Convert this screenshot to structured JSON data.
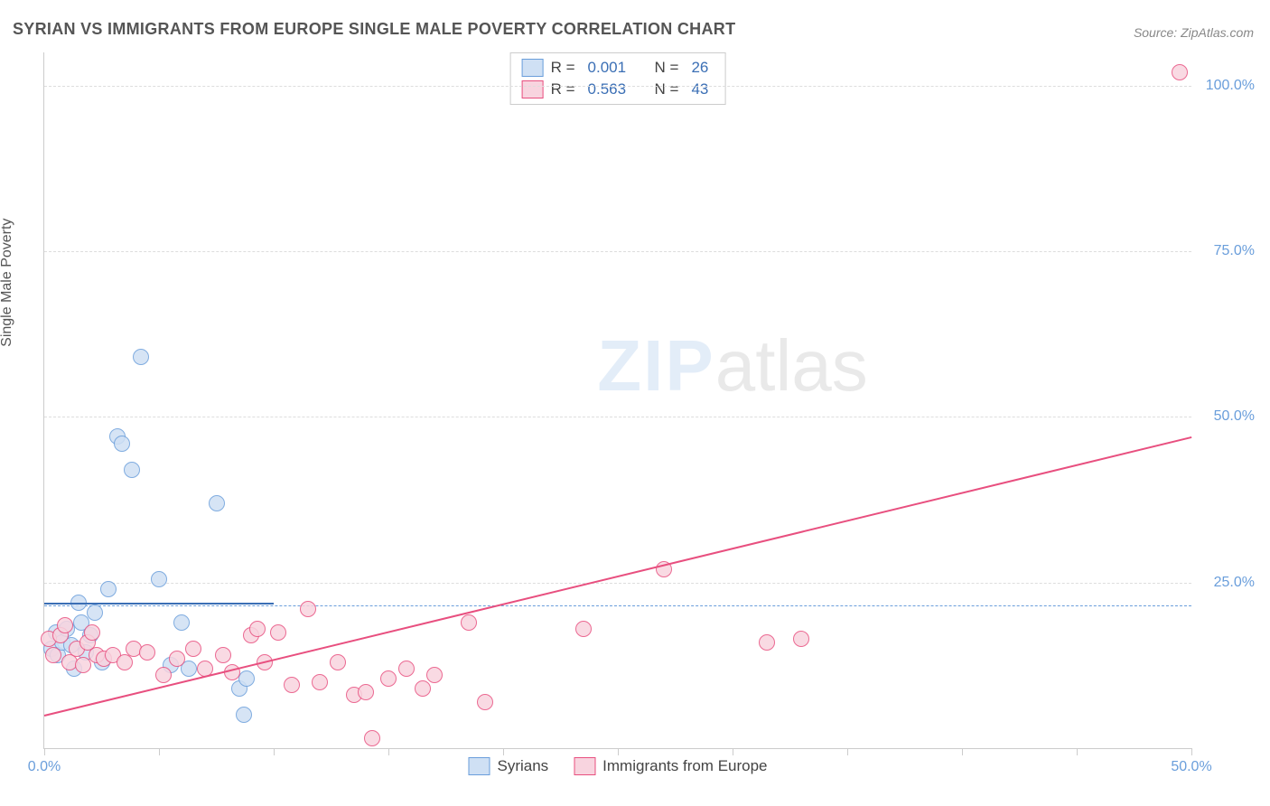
{
  "title": "SYRIAN VS IMMIGRANTS FROM EUROPE SINGLE MALE POVERTY CORRELATION CHART",
  "source_prefix": "Source: ",
  "source_name": "ZipAtlas.com",
  "ylabel": "Single Male Poverty",
  "watermark_a": "ZIP",
  "watermark_b": "atlas",
  "chart": {
    "type": "scatter",
    "xlim": [
      0,
      50
    ],
    "ylim": [
      0,
      105
    ],
    "background_color": "#ffffff",
    "grid_color": "#dddddd",
    "grid_dash": true,
    "xtick_positions": [
      0,
      5,
      10,
      15,
      20,
      25,
      30,
      35,
      40,
      45,
      50
    ],
    "xtick_labels": {
      "0": "0.0%",
      "50": "50.0%"
    },
    "ytick_positions": [
      25,
      50,
      75,
      100
    ],
    "ytick_labels": {
      "25": "25.0%",
      "50": "50.0%",
      "75": "75.0%",
      "100": "100.0%"
    },
    "refline_y": 21.5,
    "refline_color": "#6a9edb",
    "axis_color": "#cccccc",
    "marker_radius": 8,
    "marker_border_width": 1.2,
    "trend_width": 2,
    "ylabel_fontsize": 16,
    "title_fontsize": 18,
    "tick_label_color": "#6a9edb"
  },
  "series": [
    {
      "name": "Syrians",
      "fill": "#cfe0f4",
      "stroke": "#6a9edb",
      "R": "0.001",
      "N": "26",
      "trend": {
        "x1": 0,
        "y1": 22.0,
        "x2": 10,
        "y2": 22.0,
        "color": "#3b6fb5"
      },
      "points": [
        [
          0.3,
          15.0
        ],
        [
          0.5,
          17.5
        ],
        [
          0.6,
          14.0
        ],
        [
          0.8,
          16.0
        ],
        [
          1.0,
          18.0
        ],
        [
          1.2,
          15.5
        ],
        [
          1.3,
          12.0
        ],
        [
          1.5,
          22.0
        ],
        [
          1.6,
          19.0
        ],
        [
          1.8,
          14.5
        ],
        [
          2.0,
          17.0
        ],
        [
          2.2,
          20.5
        ],
        [
          2.5,
          13.0
        ],
        [
          2.8,
          24.0
        ],
        [
          3.2,
          47.0
        ],
        [
          3.4,
          46.0
        ],
        [
          3.8,
          42.0
        ],
        [
          4.2,
          59.0
        ],
        [
          5.0,
          25.5
        ],
        [
          5.5,
          12.5
        ],
        [
          6.0,
          19.0
        ],
        [
          6.3,
          12.0
        ],
        [
          7.5,
          37.0
        ],
        [
          8.5,
          9.0
        ],
        [
          8.7,
          5.0
        ],
        [
          8.8,
          10.5
        ]
      ]
    },
    {
      "name": "Immigrants from Europe",
      "fill": "#f8d4df",
      "stroke": "#e84f7f",
      "R": "0.563",
      "N": "43",
      "trend": {
        "x1": 0,
        "y1": 5.0,
        "x2": 50,
        "y2": 47.0,
        "color": "#e84f7f"
      },
      "points": [
        [
          0.2,
          16.5
        ],
        [
          0.4,
          14.0
        ],
        [
          0.7,
          17.0
        ],
        [
          0.9,
          18.5
        ],
        [
          1.1,
          13.0
        ],
        [
          1.4,
          15.0
        ],
        [
          1.7,
          12.5
        ],
        [
          1.9,
          16.0
        ],
        [
          2.1,
          17.5
        ],
        [
          2.3,
          14.0
        ],
        [
          2.6,
          13.5
        ],
        [
          3.0,
          14.0
        ],
        [
          3.5,
          13.0
        ],
        [
          3.9,
          15.0
        ],
        [
          4.5,
          14.5
        ],
        [
          5.2,
          11.0
        ],
        [
          5.8,
          13.5
        ],
        [
          6.5,
          15.0
        ],
        [
          7.0,
          12.0
        ],
        [
          7.8,
          14.0
        ],
        [
          8.2,
          11.5
        ],
        [
          9.0,
          17.0
        ],
        [
          9.3,
          18.0
        ],
        [
          9.6,
          13.0
        ],
        [
          10.2,
          17.5
        ],
        [
          10.8,
          9.5
        ],
        [
          11.5,
          21.0
        ],
        [
          12.0,
          10.0
        ],
        [
          12.8,
          13.0
        ],
        [
          13.5,
          8.0
        ],
        [
          14.0,
          8.5
        ],
        [
          14.3,
          1.5
        ],
        [
          15.0,
          10.5
        ],
        [
          15.8,
          12.0
        ],
        [
          16.5,
          9.0
        ],
        [
          17.0,
          11.0
        ],
        [
          18.5,
          19.0
        ],
        [
          19.2,
          7.0
        ],
        [
          23.5,
          18.0
        ],
        [
          27.0,
          27.0
        ],
        [
          31.5,
          16.0
        ],
        [
          33.0,
          16.5
        ],
        [
          49.5,
          102.0
        ]
      ]
    }
  ],
  "legend_labels": {
    "R_prefix": "R = ",
    "N_prefix": "N = "
  }
}
